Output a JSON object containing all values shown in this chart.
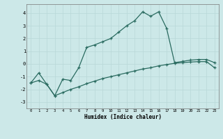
{
  "xlabel": "Humidex (Indice chaleur)",
  "bg_color": "#cce8e8",
  "line_color": "#2a6b60",
  "xlim": [
    -0.5,
    23.5
  ],
  "ylim": [
    -3.5,
    4.7
  ],
  "yticks": [
    -3,
    -2,
    -1,
    0,
    1,
    2,
    3,
    4
  ],
  "xticks": [
    0,
    1,
    2,
    3,
    4,
    5,
    6,
    7,
    8,
    9,
    10,
    11,
    12,
    13,
    14,
    15,
    16,
    17,
    18,
    19,
    20,
    21,
    22,
    23
  ],
  "curve1_x": [
    0,
    1,
    2,
    3,
    4,
    5,
    6,
    7,
    8,
    9,
    10,
    11,
    12,
    13,
    14,
    15,
    16,
    17,
    18,
    19,
    20,
    21,
    22,
    23
  ],
  "curve1_y": [
    -1.5,
    -0.7,
    -1.6,
    -2.5,
    -1.2,
    -1.3,
    -0.3,
    1.3,
    1.5,
    1.75,
    2.0,
    2.5,
    3.0,
    3.4,
    4.1,
    3.75,
    4.1,
    2.8,
    0.1,
    0.2,
    0.3,
    0.35,
    0.35,
    0.1
  ],
  "curve2_x": [
    0,
    1,
    2,
    3,
    4,
    5,
    6,
    7,
    8,
    9,
    10,
    11,
    12,
    13,
    14,
    15,
    16,
    17,
    18,
    19,
    20,
    21,
    22,
    23
  ],
  "curve2_y": [
    -1.5,
    -1.3,
    -1.6,
    -2.5,
    -2.25,
    -2.0,
    -1.8,
    -1.55,
    -1.35,
    -1.15,
    -1.0,
    -0.85,
    -0.7,
    -0.55,
    -0.4,
    -0.3,
    -0.15,
    -0.05,
    0.05,
    0.1,
    0.15,
    0.18,
    0.18,
    -0.3
  ]
}
